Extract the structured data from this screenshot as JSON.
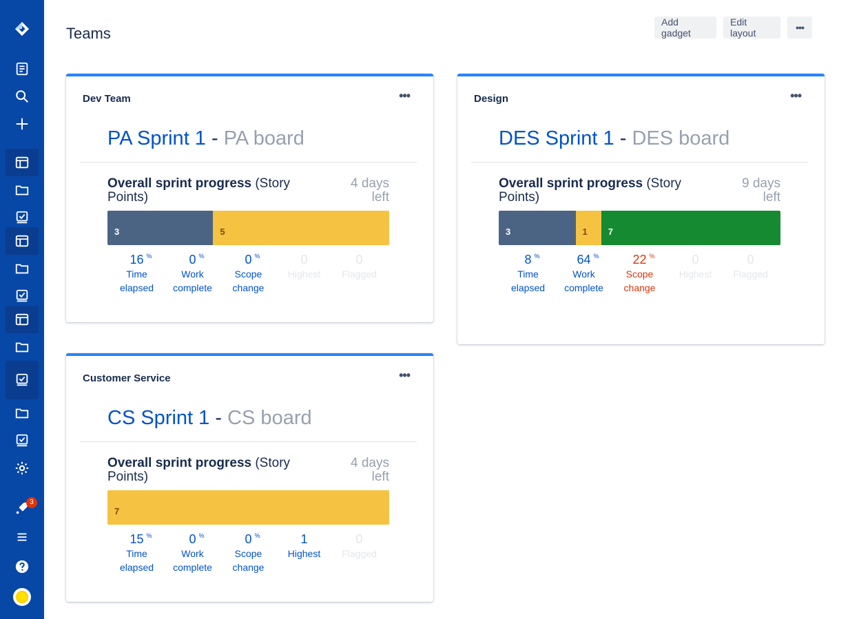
{
  "page": {
    "title": "Teams"
  },
  "toolbar": {
    "add_gadget": "Add gadget",
    "edit_layout": "Edit layout",
    "more": "•••"
  },
  "sidebar": {
    "icons": [
      "jira-logo-icon",
      "notes-icon",
      "search-icon",
      "create-icon",
      "board-icon",
      "folder-icon",
      "backlog-icon",
      "board-icon",
      "folder-icon",
      "backlog-icon",
      "board-icon",
      "folder-icon",
      "backlog-icon",
      "folder-icon",
      "backlog-icon",
      "settings-icon",
      "notifications-icon",
      "menu-icon",
      "help-icon",
      "avatar"
    ],
    "notification_count": "3"
  },
  "colors": {
    "sidebar": "#0747a6",
    "accent": "#2684ff",
    "link": "#0052cc",
    "todo": "#4c6483",
    "in_progress": "#f5c242",
    "done": "#158a30",
    "warning": "#de350b"
  },
  "cards": [
    {
      "title": "Dev Team",
      "more": "•••",
      "sprint_name": "PA Sprint 1",
      "separator": "-",
      "board_name": "PA board",
      "progress_bold": "Overall sprint progress",
      "progress_rest": "(Story Points)",
      "days_left": "4 days left",
      "segments": [
        {
          "status": "todo",
          "points": 3,
          "label": "3"
        },
        {
          "status": "inprog",
          "points": 5,
          "label": "5"
        }
      ],
      "stats": [
        {
          "value": "16",
          "unit": "%",
          "label1": "Time",
          "label2": "elapsed",
          "state": "normal"
        },
        {
          "value": "0",
          "unit": "%",
          "label1": "Work",
          "label2": "complete",
          "state": "normal"
        },
        {
          "value": "0",
          "unit": "%",
          "label1": "Scope",
          "label2": "change",
          "state": "normal"
        },
        {
          "value": "0",
          "unit": "",
          "label1": "Highest",
          "label2": "",
          "state": "faded"
        },
        {
          "value": "0",
          "unit": "",
          "label1": "Flagged",
          "label2": "",
          "state": "faded"
        }
      ]
    },
    {
      "title": "Design",
      "more": "•••",
      "sprint_name": "DES Sprint 1",
      "separator": "-",
      "board_name": "DES board",
      "progress_bold": "Overall sprint progress",
      "progress_rest": "(Story Points)",
      "days_left": "9 days left",
      "segments": [
        {
          "status": "todo",
          "points": 3,
          "label": "3"
        },
        {
          "status": "inprog",
          "points": 1,
          "label": "1"
        },
        {
          "status": "done",
          "points": 7,
          "label": "7"
        }
      ],
      "stats": [
        {
          "value": "8",
          "unit": "%",
          "label1": "Time",
          "label2": "elapsed",
          "state": "normal"
        },
        {
          "value": "64",
          "unit": "%",
          "label1": "Work",
          "label2": "complete",
          "state": "normal"
        },
        {
          "value": "22",
          "unit": "%",
          "label1": "Scope",
          "label2": "change",
          "state": "warn"
        },
        {
          "value": "0",
          "unit": "",
          "label1": "Highest",
          "label2": "",
          "state": "faded"
        },
        {
          "value": "0",
          "unit": "",
          "label1": "Flagged",
          "label2": "",
          "state": "faded"
        }
      ]
    },
    {
      "title": "Customer Service",
      "more": "•••",
      "sprint_name": "CS Sprint 1",
      "separator": "-",
      "board_name": "CS board",
      "progress_bold": "Overall sprint progress",
      "progress_rest": "(Story Points)",
      "days_left": "4 days left",
      "segments": [
        {
          "status": "inprog",
          "points": 7,
          "label": "7"
        }
      ],
      "stats": [
        {
          "value": "15",
          "unit": "%",
          "label1": "Time",
          "label2": "elapsed",
          "state": "normal"
        },
        {
          "value": "0",
          "unit": "%",
          "label1": "Work",
          "label2": "complete",
          "state": "normal"
        },
        {
          "value": "0",
          "unit": "%",
          "label1": "Scope",
          "label2": "change",
          "state": "normal"
        },
        {
          "value": "1",
          "unit": "",
          "label1": "Highest",
          "label2": "",
          "state": "normal"
        },
        {
          "value": "0",
          "unit": "",
          "label1": "Flagged",
          "label2": "",
          "state": "faded"
        }
      ]
    }
  ]
}
